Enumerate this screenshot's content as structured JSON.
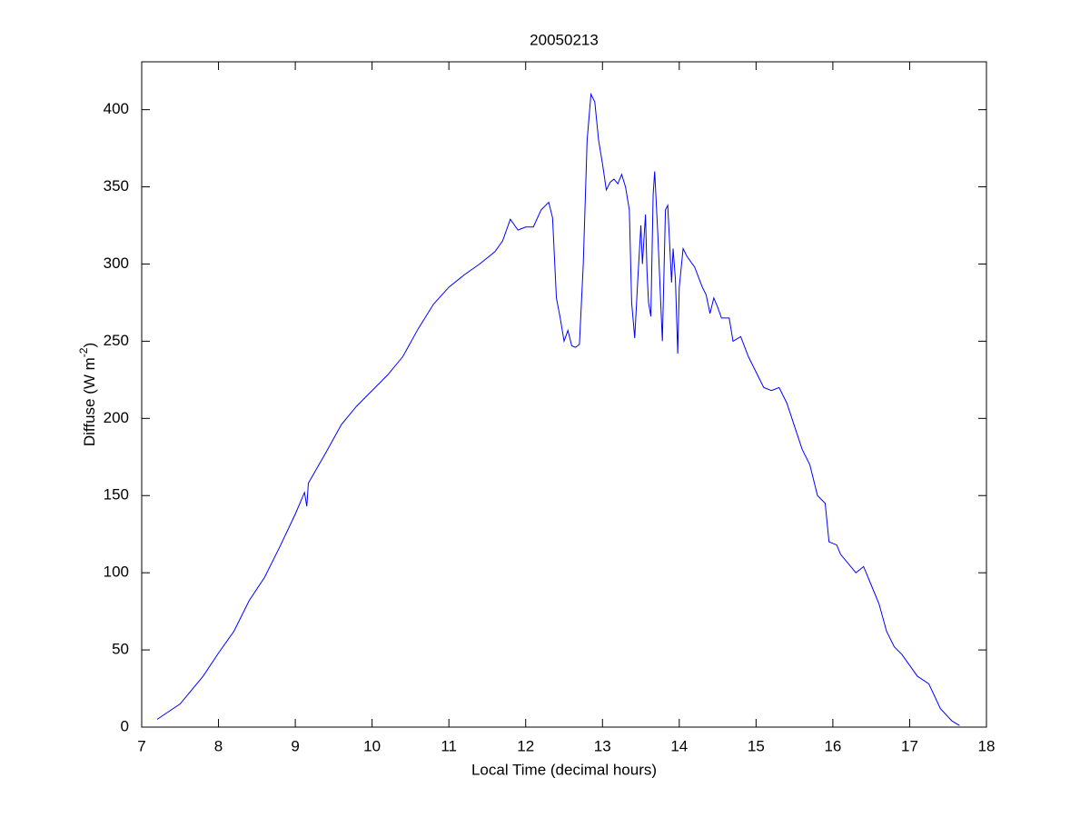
{
  "chart_data": {
    "type": "line",
    "title": "20050213",
    "xlabel": "Local Time (decimal hours)",
    "ylabel": [
      "Diffuse (W m",
      "-2",
      ")"
    ],
    "xlim": [
      7,
      18
    ],
    "xticks": [
      7,
      8,
      9,
      10,
      11,
      12,
      13,
      14,
      15,
      16,
      17,
      18
    ],
    "ylim": [
      0,
      431
    ],
    "yticks": [
      0,
      50,
      100,
      150,
      200,
      250,
      300,
      350,
      400
    ],
    "grid": false,
    "series": [
      {
        "color": "#0000ff",
        "x": [
          7.2,
          7.5,
          7.8,
          8.0,
          8.2,
          8.4,
          8.6,
          8.8,
          9.0,
          9.12,
          9.15,
          9.17,
          9.4,
          9.6,
          9.8,
          10.0,
          10.2,
          10.4,
          10.6,
          10.8,
          11.0,
          11.2,
          11.4,
          11.6,
          11.7,
          11.8,
          11.9,
          12.0,
          12.1,
          12.2,
          12.3,
          12.35,
          12.4,
          12.45,
          12.5,
          12.55,
          12.6,
          12.65,
          12.7,
          12.75,
          12.8,
          12.85,
          12.9,
          12.95,
          13.0,
          13.05,
          13.1,
          13.15,
          13.2,
          13.25,
          13.3,
          13.35,
          13.38,
          13.42,
          13.46,
          13.5,
          13.52,
          13.56,
          13.58,
          13.6,
          13.63,
          13.66,
          13.68,
          13.72,
          13.78,
          13.82,
          13.85,
          13.9,
          13.92,
          13.95,
          13.98,
          14.0,
          14.05,
          14.1,
          14.2,
          14.3,
          14.35,
          14.4,
          14.45,
          14.5,
          14.55,
          14.65,
          14.7,
          14.8,
          14.9,
          15.0,
          15.1,
          15.2,
          15.3,
          15.4,
          15.5,
          15.6,
          15.7,
          15.8,
          15.9,
          15.95,
          16.05,
          16.1,
          16.3,
          16.4,
          16.5,
          16.6,
          16.7,
          16.8,
          16.9,
          17.0,
          17.1,
          17.25,
          17.4,
          17.55,
          17.65
        ],
        "values": [
          5,
          15,
          33,
          48,
          62,
          82,
          97,
          117,
          138,
          152,
          143,
          158,
          178,
          196,
          208,
          218,
          228,
          240,
          258,
          274,
          285,
          293,
          300,
          308,
          315,
          329,
          322,
          324,
          324,
          335,
          340,
          330,
          278,
          265,
          250,
          257,
          247,
          246,
          248,
          300,
          380,
          410,
          405,
          380,
          365,
          348,
          353,
          355,
          352,
          358,
          350,
          335,
          275,
          252,
          290,
          325,
          300,
          332,
          295,
          275,
          266,
          345,
          360,
          320,
          250,
          335,
          338,
          288,
          310,
          290,
          242,
          285,
          310,
          305,
          298,
          285,
          280,
          268,
          278,
          272,
          265,
          265,
          250,
          253,
          240,
          230,
          220,
          218,
          220,
          210,
          195,
          180,
          170,
          150,
          145,
          120,
          118,
          112,
          100,
          104,
          92,
          80,
          62,
          52,
          47,
          40,
          33,
          28,
          12,
          4,
          1
        ]
      }
    ]
  }
}
